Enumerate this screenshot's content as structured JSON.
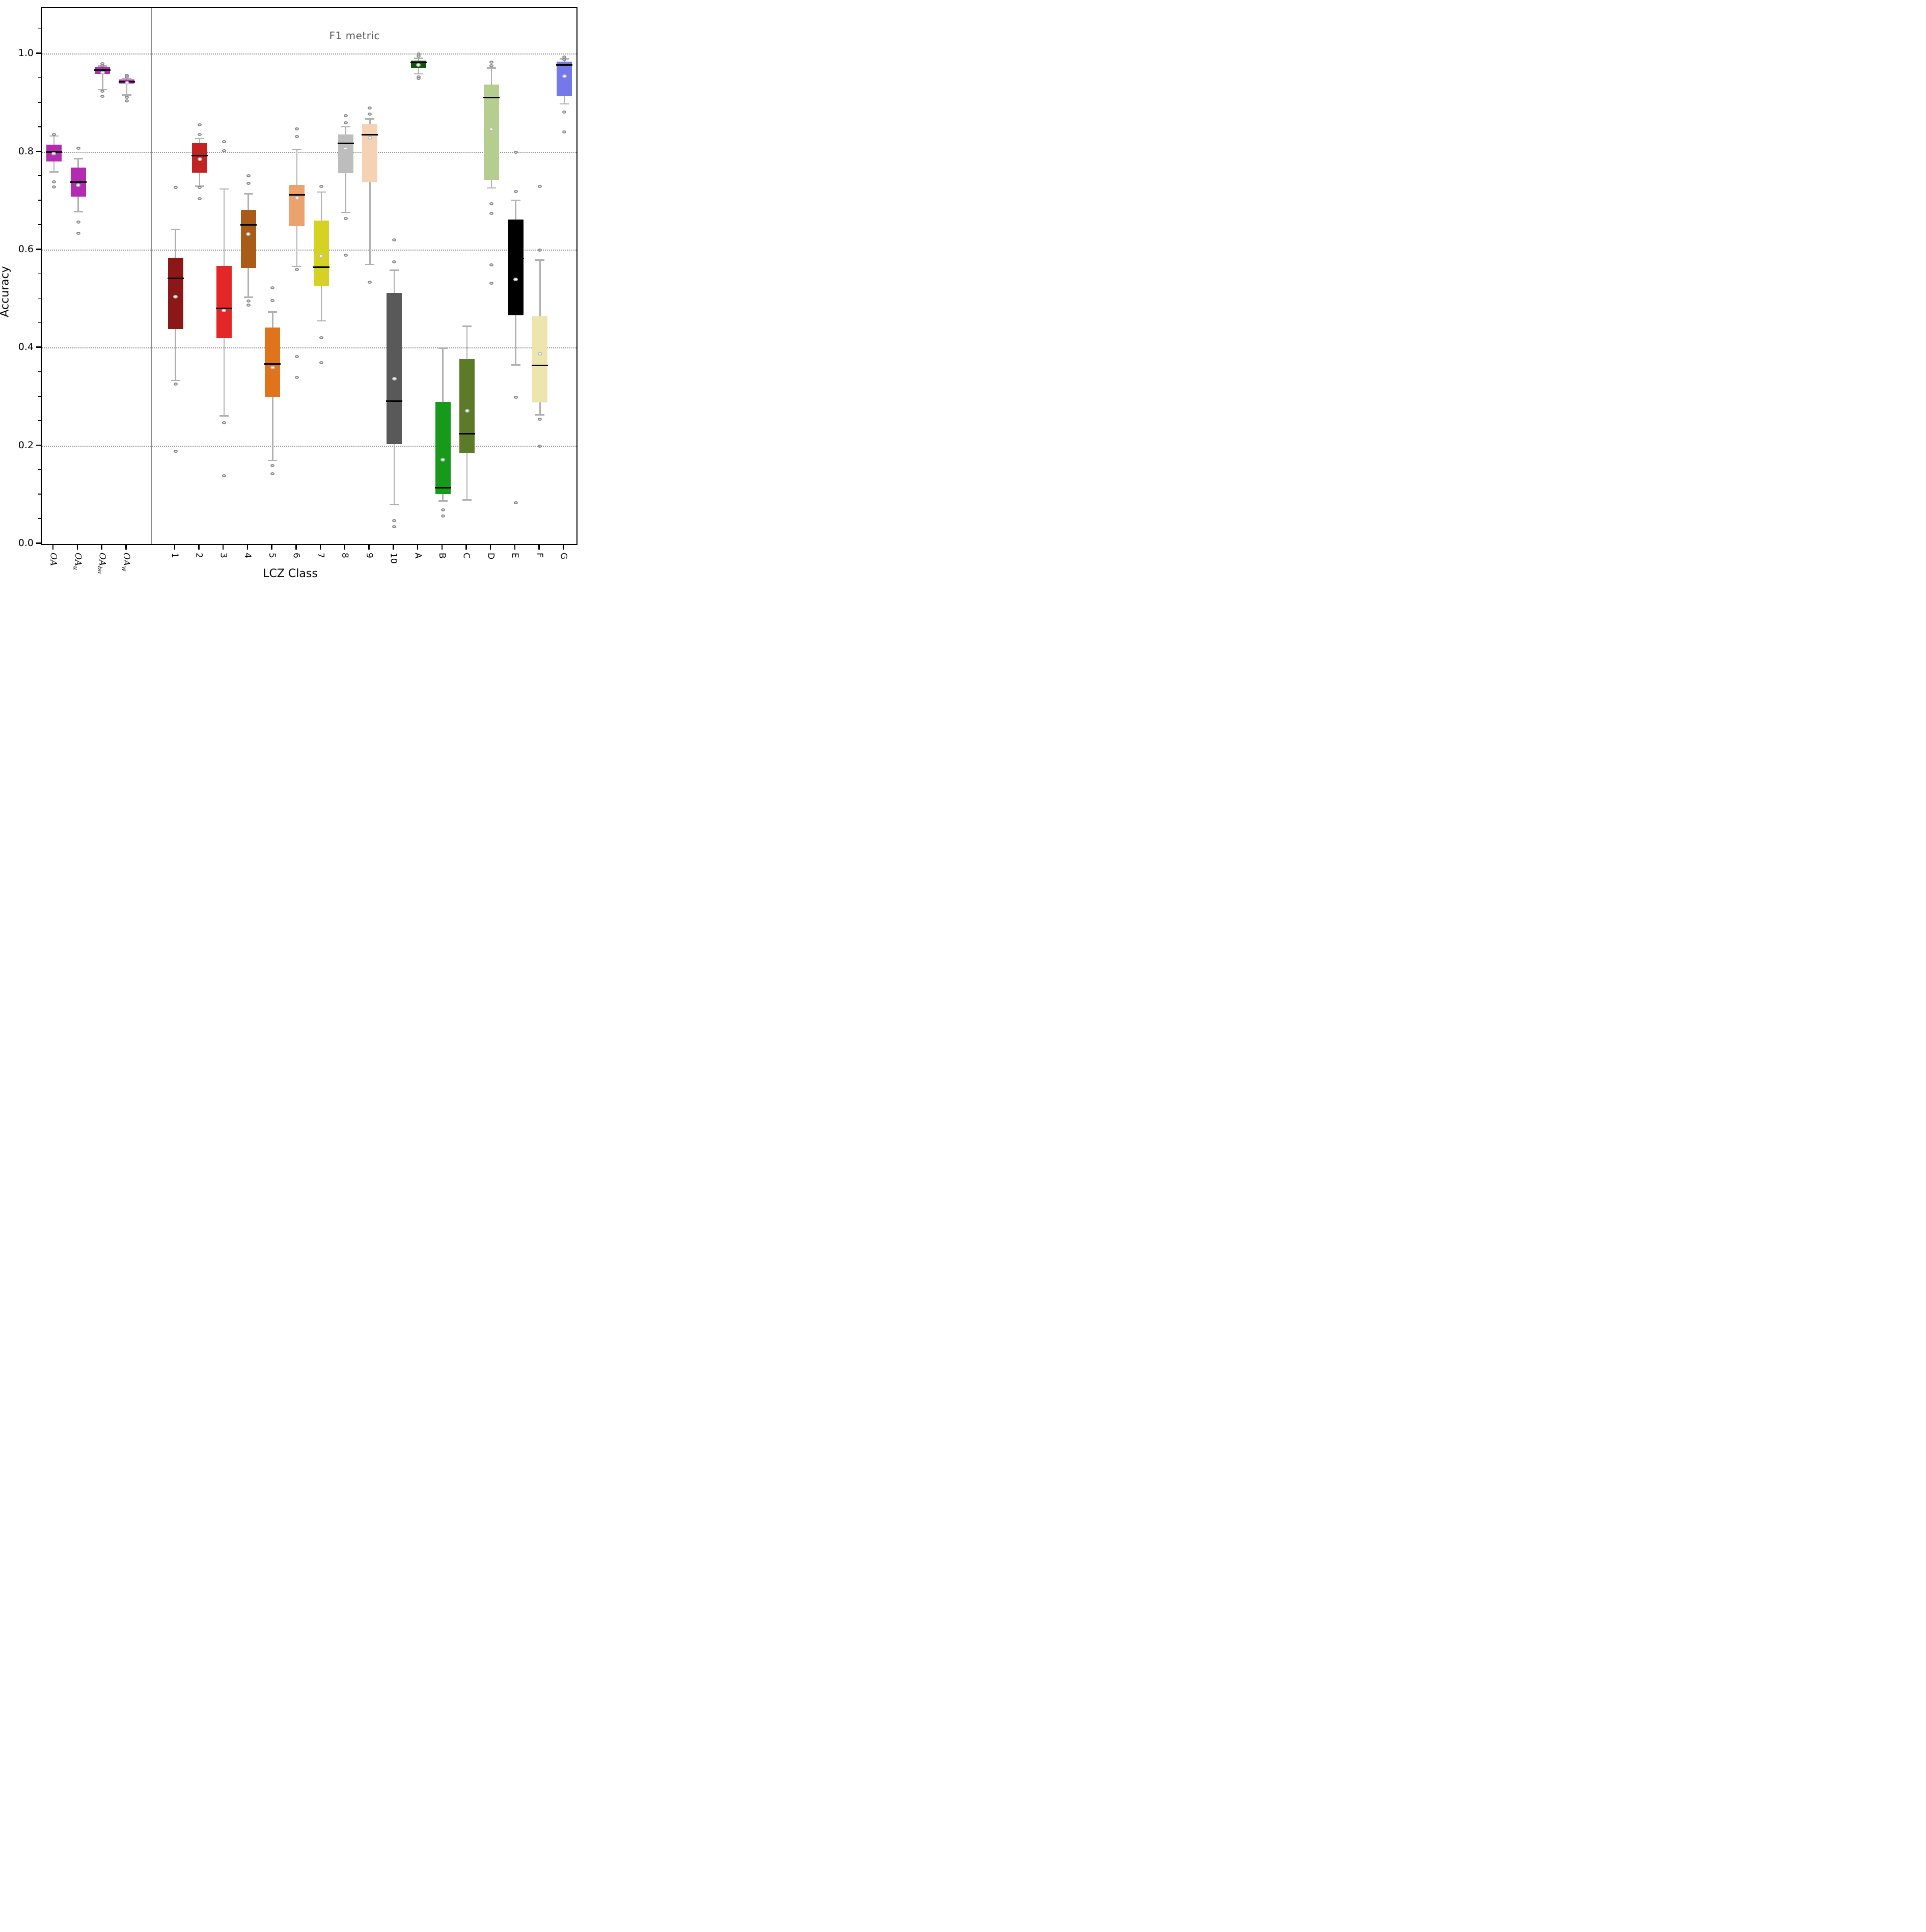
{
  "chart_data": {
    "type": "box",
    "title": "F1 metric",
    "xlabel": "LCZ Class",
    "ylabel": "Accuracy",
    "ylim": [
      0.0,
      1.094
    ],
    "yticks": [
      0.0,
      0.2,
      0.4,
      0.6,
      0.8,
      1.0
    ],
    "ytick_labels": [
      "0.0",
      "0.2",
      "0.4",
      "0.6",
      "0.8",
      "1.0"
    ],
    "grid": "horizontal dotted at each major ytick",
    "legend": "none",
    "total_slots": 22,
    "separator_slot": 5,
    "style": {
      "median_color": "#000000",
      "whisker_color": "#b0b0b0",
      "flier_edge_color": "#8a8a8a",
      "mean_face_color": "#ffffff",
      "mean_edge_color": "#bdbdbd",
      "grid_color": "#7f7f7f",
      "title_color": "#595959",
      "separator_color": "#8c8c8c"
    },
    "groups": [
      {
        "name": "overall-accuracy",
        "description": "OA boxes left of separator"
      },
      {
        "name": "f1-per-class",
        "description": "per-LCZ-class F1 boxes right of separator"
      }
    ],
    "series": [
      {
        "label": "OA",
        "sublabel": "",
        "slot": 1,
        "group": "overall-accuracy",
        "color": "#b32ab3",
        "whisker_high": 0.833,
        "q3": 0.815,
        "median": 0.8,
        "mean": 0.797,
        "q1": 0.781,
        "whisker_low": 0.76,
        "fliers_above": [
          0.836
        ],
        "fliers_below": [
          0.739,
          0.729
        ]
      },
      {
        "label": "OA",
        "sublabel": "u",
        "slot": 2,
        "group": "overall-accuracy",
        "color": "#b32ab3",
        "whisker_high": 0.787,
        "q3": 0.768,
        "median": 0.739,
        "mean": 0.733,
        "q1": 0.709,
        "whisker_low": 0.679,
        "fliers_above": [
          0.808
        ],
        "fliers_below": [
          0.657,
          0.634
        ]
      },
      {
        "label": "OA",
        "sublabel": "bu",
        "slot": 3,
        "group": "overall-accuracy",
        "color": "#b32ab3",
        "whisker_high": 0.976,
        "q3": 0.973,
        "median": 0.968,
        "mean": 0.962,
        "q1": 0.96,
        "whisker_low": 0.928,
        "fliers_above": [
          0.981,
          0.977
        ],
        "fliers_below": [
          0.924,
          0.914
        ]
      },
      {
        "label": "OA",
        "sublabel": "w",
        "slot": 4,
        "group": "overall-accuracy",
        "color": "#b32ab3",
        "whisker_high": 0.951,
        "q3": 0.948,
        "median": 0.944,
        "mean": 0.942,
        "q1": 0.94,
        "whisker_low": 0.917,
        "fliers_above": [
          0.957,
          0.954
        ],
        "fliers_below": [
          0.912,
          0.905
        ]
      },
      {
        "label": "1",
        "sublabel": "",
        "slot": 6,
        "group": "f1-per-class",
        "color": "#8c1717",
        "whisker_high": 0.643,
        "q3": 0.584,
        "median": 0.542,
        "mean": 0.505,
        "q1": 0.439,
        "whisker_low": 0.334,
        "fliers_above": [
          0.728
        ],
        "fliers_below": [
          0.327,
          0.189
        ]
      },
      {
        "label": "2",
        "sublabel": "",
        "slot": 7,
        "group": "f1-per-class",
        "color": "#c32222",
        "whisker_high": 0.828,
        "q3": 0.818,
        "median": 0.793,
        "mean": 0.786,
        "q1": 0.758,
        "whisker_low": 0.731,
        "fliers_above": [
          0.856,
          0.836
        ],
        "fliers_below": [
          0.728,
          0.705
        ]
      },
      {
        "label": "3",
        "sublabel": "",
        "slot": 8,
        "group": "f1-per-class",
        "color": "#e32626",
        "whisker_high": 0.725,
        "q3": 0.568,
        "median": 0.481,
        "mean": 0.477,
        "q1": 0.42,
        "whisker_low": 0.262,
        "fliers_above": [
          0.822,
          0.803
        ],
        "fliers_below": [
          0.247,
          0.139
        ]
      },
      {
        "label": "4",
        "sublabel": "",
        "slot": 9,
        "group": "f1-per-class",
        "color": "#a95c17",
        "whisker_high": 0.715,
        "q3": 0.682,
        "median": 0.652,
        "mean": 0.633,
        "q1": 0.564,
        "whisker_low": 0.504,
        "fliers_above": [
          0.752,
          0.736
        ],
        "fliers_below": [
          0.496,
          0.488
        ]
      },
      {
        "label": "5",
        "sublabel": "",
        "slot": 10,
        "group": "f1-per-class",
        "color": "#e0741c",
        "whisker_high": 0.474,
        "q3": 0.442,
        "median": 0.368,
        "mean": 0.36,
        "q1": 0.301,
        "whisker_low": 0.171,
        "fliers_above": [
          0.523,
          0.497
        ],
        "fliers_below": [
          0.16,
          0.144
        ]
      },
      {
        "label": "6",
        "sublabel": "",
        "slot": 11,
        "group": "f1-per-class",
        "color": "#eba26c",
        "whisker_high": 0.805,
        "q3": 0.733,
        "median": 0.713,
        "mean": 0.707,
        "q1": 0.649,
        "whisker_low": 0.567,
        "fliers_above": [
          0.848,
          0.832
        ],
        "fliers_below": [
          0.56,
          0.383,
          0.34
        ]
      },
      {
        "label": "7",
        "sublabel": "",
        "slot": 12,
        "group": "f1-per-class",
        "color": "#d6d224",
        "whisker_high": 0.719,
        "q3": 0.66,
        "median": 0.565,
        "mean": 0.588,
        "q1": 0.526,
        "whisker_low": 0.456,
        "fliers_above": [
          0.73
        ],
        "fliers_below": [
          0.421,
          0.37
        ]
      },
      {
        "label": "8",
        "sublabel": "",
        "slot": 13,
        "group": "f1-per-class",
        "color": "#bdbdbd",
        "whisker_high": 0.852,
        "q3": 0.836,
        "median": 0.818,
        "mean": 0.808,
        "q1": 0.757,
        "whisker_low": 0.677,
        "fliers_above": [
          0.875,
          0.86
        ],
        "fliers_below": [
          0.665,
          0.59
        ]
      },
      {
        "label": "9",
        "sublabel": "",
        "slot": 14,
        "group": "f1-per-class",
        "color": "#f6d2b5",
        "whisker_high": 0.868,
        "q3": 0.858,
        "median": 0.836,
        "mean": 0.829,
        "q1": 0.738,
        "whisker_low": 0.571,
        "fliers_above": [
          0.89,
          0.878
        ],
        "fliers_below": [
          0.535
        ]
      },
      {
        "label": "10",
        "sublabel": "",
        "slot": 15,
        "group": "f1-per-class",
        "color": "#595959",
        "whisker_high": 0.559,
        "q3": 0.513,
        "median": 0.292,
        "mean": 0.337,
        "q1": 0.204,
        "whisker_low": 0.081,
        "fliers_above": [
          0.621,
          0.576
        ],
        "fliers_below": [
          0.048,
          0.035
        ]
      },
      {
        "label": "A",
        "sublabel": "",
        "slot": 16,
        "group": "f1-per-class",
        "color": "#0e540e",
        "whisker_high": 0.992,
        "q3": 0.987,
        "median": 0.983,
        "mean": 0.978,
        "q1": 0.972,
        "whisker_low": 0.96,
        "fliers_above": [
          1.0,
          0.996
        ],
        "fliers_below": [
          0.954,
          0.95
        ]
      },
      {
        "label": "B",
        "sublabel": "",
        "slot": 17,
        "group": "f1-per-class",
        "color": "#17991c",
        "whisker_high": 0.4,
        "q3": 0.29,
        "median": 0.115,
        "mean": 0.172,
        "q1": 0.102,
        "whisker_low": 0.088,
        "fliers_above": [],
        "fliers_below": [
          0.07,
          0.057
        ]
      },
      {
        "label": "C",
        "sublabel": "",
        "slot": 18,
        "group": "f1-per-class",
        "color": "#5d7a28",
        "whisker_high": 0.445,
        "q3": 0.378,
        "median": 0.225,
        "mean": 0.272,
        "q1": 0.186,
        "whisker_low": 0.09,
        "fliers_above": [],
        "fliers_below": []
      },
      {
        "label": "D",
        "sublabel": "",
        "slot": 19,
        "group": "f1-per-class",
        "color": "#b5cd8e",
        "whisker_high": 0.972,
        "q3": 0.938,
        "median": 0.911,
        "mean": 0.847,
        "q1": 0.744,
        "whisker_low": 0.727,
        "fliers_above": [
          0.984,
          0.977
        ],
        "fliers_below": [
          0.695,
          0.675,
          0.57,
          0.532
        ]
      },
      {
        "label": "E",
        "sublabel": "",
        "slot": 20,
        "group": "f1-per-class",
        "color": "#000000",
        "whisker_high": 0.702,
        "q3": 0.662,
        "median": 0.583,
        "mean": 0.54,
        "q1": 0.467,
        "whisker_low": 0.366,
        "fliers_above": [
          0.8,
          0.72
        ],
        "fliers_below": [
          0.3,
          0.084
        ]
      },
      {
        "label": "F",
        "sublabel": "",
        "slot": 21,
        "group": "f1-per-class",
        "color": "#ece5ad",
        "whisker_high": 0.58,
        "q3": 0.465,
        "median": 0.364,
        "mean": 0.388,
        "q1": 0.289,
        "whisker_low": 0.264,
        "fliers_above": [
          0.73,
          0.6
        ],
        "fliers_below": [
          0.255,
          0.2
        ]
      },
      {
        "label": "G",
        "sublabel": "",
        "slot": 22,
        "group": "f1-per-class",
        "color": "#7478e8",
        "whisker_high": 0.991,
        "q3": 0.985,
        "median": 0.978,
        "mean": 0.955,
        "q1": 0.914,
        "whisker_low": 0.899,
        "fliers_above": [
          0.994,
          0.989
        ],
        "fliers_below": [
          0.882,
          0.841
        ]
      }
    ]
  }
}
